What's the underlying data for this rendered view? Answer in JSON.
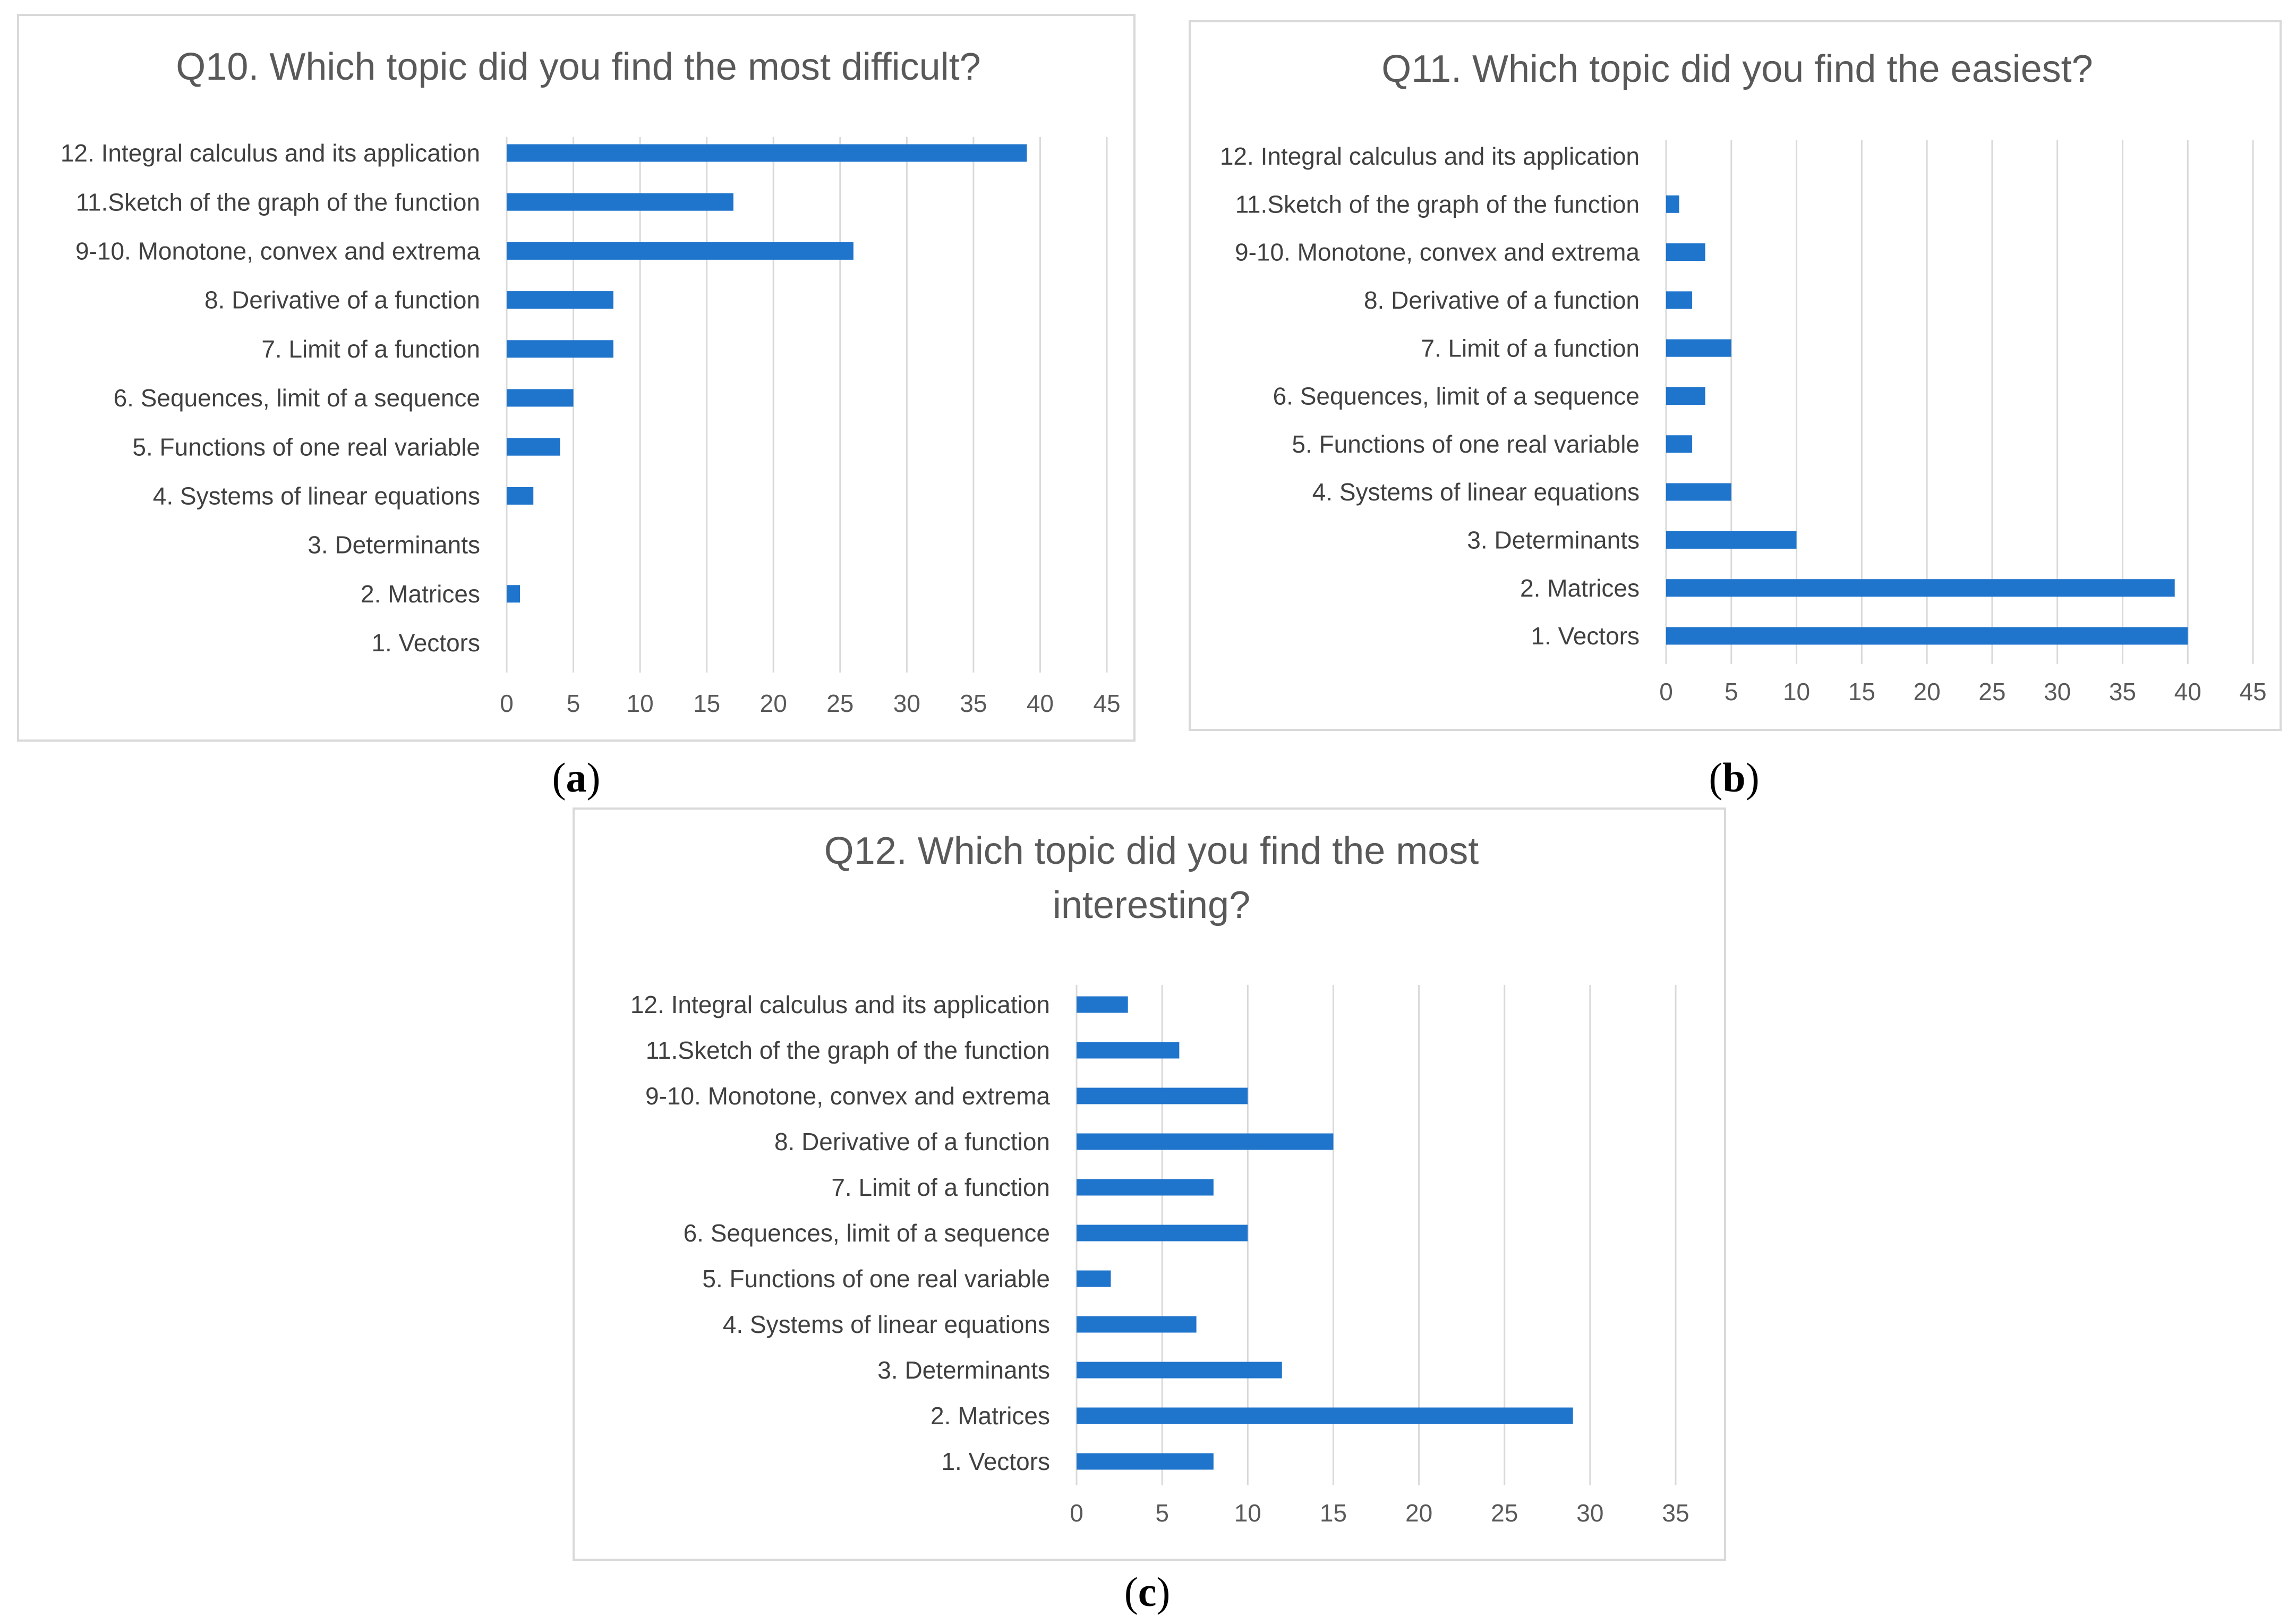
{
  "categories": [
    "12. Integral calculus and its application",
    "11.Sketch of the graph of the function",
    "9-10. Monotone, convex and extrema",
    "8. Derivative of a function",
    "7. Limit of a function",
    "6. Sequences, limit of a sequence",
    "5. Functions of one real variable",
    "4. Systems of linear equations",
    "3. Determinants",
    "2. Matrices",
    "1. Vectors"
  ],
  "bar_color": "#1f74cc",
  "captions": {
    "a": {
      "open": "(",
      "letter": "a",
      "close": ")"
    },
    "b": {
      "open": "(",
      "letter": "b",
      "close": ")"
    },
    "c": {
      "open": "(",
      "letter": "c",
      "close": ")"
    }
  },
  "chart_data": [
    {
      "type": "bar",
      "orientation": "horizontal",
      "title": "Q10. Which topic did you find the most difficult?",
      "categories": [
        "12. Integral calculus and its application",
        "11.Sketch of the graph of the function",
        "9-10. Monotone, convex and extrema",
        "8. Derivative of a function",
        "7. Limit of a function",
        "6. Sequences, limit of a sequence",
        "5. Functions of one real variable",
        "4. Systems of linear equations",
        "3. Determinants",
        "2. Matrices",
        "1. Vectors"
      ],
      "values": [
        39,
        17,
        26,
        8,
        8,
        5,
        4,
        2,
        0,
        1,
        0
      ],
      "xlim": [
        0,
        45
      ],
      "xticks": [
        "0",
        "5",
        "10",
        "15",
        "20",
        "25",
        "30",
        "35",
        "40",
        "45"
      ],
      "xlabel": "",
      "ylabel": "",
      "grid": true
    },
    {
      "type": "bar",
      "orientation": "horizontal",
      "title": "Q11. Which topic did you find the easiest?",
      "categories": [
        "12. Integral calculus and its application",
        "11.Sketch of the graph of the function",
        "9-10. Monotone, convex and extrema",
        "8. Derivative of a function",
        "7. Limit of a function",
        "6. Sequences, limit of a sequence",
        "5. Functions of one real variable",
        "4. Systems of linear equations",
        "3. Determinants",
        "2. Matrices",
        "1. Vectors"
      ],
      "values": [
        0,
        1,
        3,
        2,
        5,
        3,
        2,
        5,
        10,
        39,
        40
      ],
      "xlim": [
        0,
        45
      ],
      "xticks": [
        "0",
        "5",
        "10",
        "15",
        "20",
        "25",
        "30",
        "35",
        "40",
        "45"
      ],
      "xlabel": "",
      "ylabel": "",
      "grid": true
    },
    {
      "type": "bar",
      "orientation": "horizontal",
      "title": [
        "Q12. Which topic did you find the most",
        "interesting?"
      ],
      "categories": [
        "12. Integral calculus and its application",
        "11.Sketch of the graph of the function",
        "9-10. Monotone, convex and extrema",
        "8. Derivative of a function",
        "7. Limit of a function",
        "6. Sequences, limit of a sequence",
        "5. Functions of one real variable",
        "4. Systems of linear equations",
        "3. Determinants",
        "2. Matrices",
        "1. Vectors"
      ],
      "values": [
        3,
        6,
        10,
        15,
        8,
        10,
        2,
        7,
        12,
        29,
        8
      ],
      "xlim": [
        0,
        35
      ],
      "xticks": [
        "0",
        "5",
        "10",
        "15",
        "20",
        "25",
        "30",
        "35"
      ],
      "xlabel": "",
      "ylabel": "",
      "grid": true
    }
  ]
}
